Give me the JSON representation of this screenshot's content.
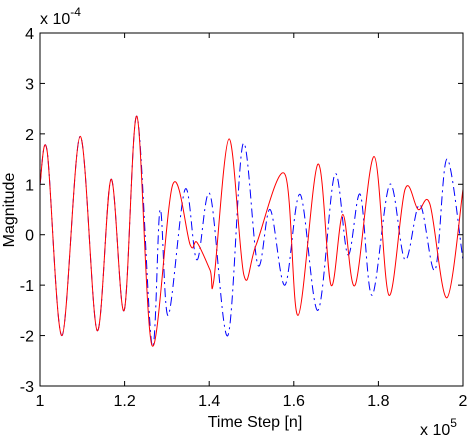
{
  "chart_data": {
    "type": "line",
    "xlabel": "Time Step [n]",
    "ylabel": "Magnitude",
    "x_multiplier": {
      "base": "x 10",
      "exponent": "5"
    },
    "y_multiplier": {
      "base": "x 10",
      "exponent": "-4"
    },
    "xlim": [
      1,
      2
    ],
    "ylim": [
      -3,
      4
    ],
    "xticks": [
      1,
      1.2,
      1.4,
      1.6,
      1.8,
      2
    ],
    "yticks": [
      -3,
      -2,
      -1,
      0,
      1,
      2,
      3,
      4
    ],
    "series": [
      {
        "color": "#ff0000",
        "dash": "solid",
        "x": [
          1.0,
          1.017,
          1.052,
          1.095,
          1.135,
          1.168,
          1.199,
          1.229,
          1.265,
          1.314,
          1.355,
          1.371,
          1.402,
          1.411,
          1.447,
          1.482,
          1.511,
          1.579,
          1.61,
          1.657,
          1.688,
          1.716,
          1.745,
          1.79,
          1.825,
          1.863,
          1.894,
          1.922,
          1.962,
          2.0
        ],
        "values": [
          1.0,
          1.65,
          -2.0,
          1.95,
          -1.9,
          1.1,
          -1.5,
          2.35,
          -2.2,
          1.0,
          -0.2,
          -0.15,
          -0.7,
          -0.9,
          1.9,
          -0.8,
          -0.2,
          1.2,
          -1.6,
          1.4,
          -1.0,
          0.4,
          -1.0,
          1.55,
          -1.2,
          0.9,
          0.5,
          0.6,
          -1.25,
          0.9
        ]
      },
      {
        "color": "#0000ff",
        "dash": "dashdot",
        "x": [
          1.0,
          1.017,
          1.052,
          1.095,
          1.135,
          1.168,
          1.199,
          1.229,
          1.265,
          1.284,
          1.303,
          1.343,
          1.371,
          1.402,
          1.444,
          1.48,
          1.515,
          1.544,
          1.579,
          1.615,
          1.657,
          1.697,
          1.728,
          1.757,
          1.785,
          1.827,
          1.863,
          1.898,
          1.934,
          1.962,
          2.0
        ],
        "values": [
          1.0,
          1.65,
          -2.0,
          1.95,
          -1.9,
          1.1,
          -1.5,
          2.35,
          -2.2,
          0.5,
          -1.6,
          0.9,
          -0.5,
          0.8,
          -2.0,
          1.8,
          -0.6,
          0.5,
          -1.0,
          0.8,
          -1.5,
          1.2,
          -0.4,
          0.8,
          -1.2,
          1.0,
          -0.5,
          0.6,
          -0.7,
          1.5,
          -0.5
        ]
      }
    ]
  }
}
